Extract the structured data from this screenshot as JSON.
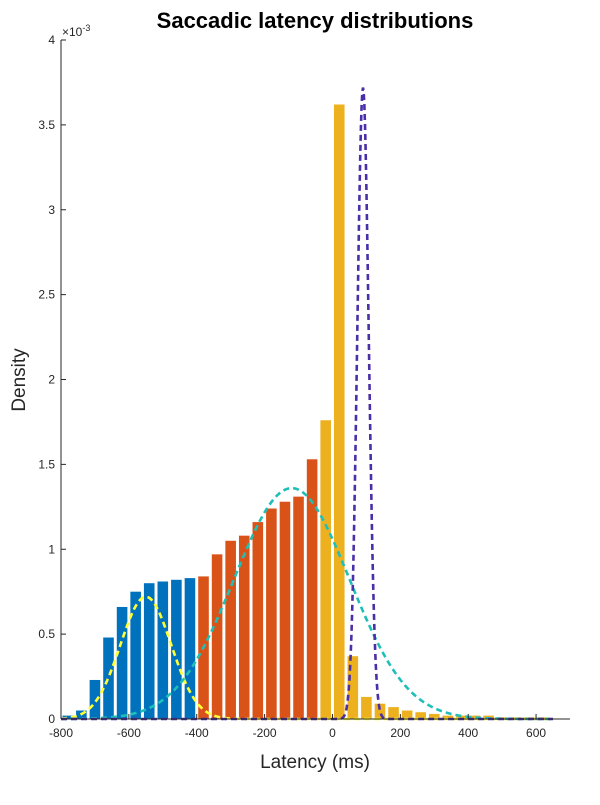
{
  "chart_data": {
    "type": "bar",
    "title": "Saccadic latency distributions",
    "xlabel": "Latency (ms)",
    "ylabel": "Density",
    "y_exponent_label": "×10^{-3}",
    "y_exponent_base": "×10",
    "y_exponent_power": "-3",
    "xlim": [
      -800,
      700
    ],
    "ylim": [
      0,
      4
    ],
    "x_ticks": [
      -800,
      -600,
      -400,
      -200,
      0,
      200,
      400,
      600
    ],
    "x_tick_labels": [
      "-800",
      "-600",
      "-400",
      "-200",
      "0",
      "200",
      "400",
      "600"
    ],
    "y_ticks": [
      0,
      0.5,
      1,
      1.5,
      2,
      2.5,
      3,
      3.5,
      4
    ],
    "y_tick_labels": [
      "0",
      "0.5",
      "1",
      "1.5",
      "2",
      "2.5",
      "3",
      "3.5",
      "4"
    ],
    "y_scale_note": "values are density × 10^-3",
    "bin_width": 40,
    "bar_series": [
      {
        "color": "#0072BD",
        "bins": [
          {
            "x": -780,
            "y": 0.02
          },
          {
            "x": -740,
            "y": 0.05
          },
          {
            "x": -700,
            "y": 0.23
          },
          {
            "x": -660,
            "y": 0.48
          },
          {
            "x": -620,
            "y": 0.66
          },
          {
            "x": -580,
            "y": 0.75
          },
          {
            "x": -540,
            "y": 0.8
          },
          {
            "x": -500,
            "y": 0.81
          },
          {
            "x": -460,
            "y": 0.82
          },
          {
            "x": -420,
            "y": 0.83
          }
        ]
      },
      {
        "color": "#D95319",
        "bins": [
          {
            "x": -380,
            "y": 0.84
          },
          {
            "x": -340,
            "y": 0.97
          },
          {
            "x": -300,
            "y": 1.05
          },
          {
            "x": -260,
            "y": 1.08
          },
          {
            "x": -220,
            "y": 1.16
          },
          {
            "x": -180,
            "y": 1.24
          },
          {
            "x": -140,
            "y": 1.28
          },
          {
            "x": -100,
            "y": 1.31
          },
          {
            "x": -60,
            "y": 1.53
          }
        ]
      },
      {
        "color": "#EDB120",
        "bins": [
          {
            "x": -20,
            "y": 1.76
          },
          {
            "x": 20,
            "y": 3.62
          },
          {
            "x": 60,
            "y": 0.37
          },
          {
            "x": 100,
            "y": 0.13
          },
          {
            "x": 140,
            "y": 0.09
          },
          {
            "x": 180,
            "y": 0.07
          },
          {
            "x": 220,
            "y": 0.05
          },
          {
            "x": 260,
            "y": 0.04
          },
          {
            "x": 300,
            "y": 0.03
          },
          {
            "x": 340,
            "y": 0.02
          },
          {
            "x": 380,
            "y": 0.02
          },
          {
            "x": 420,
            "y": 0.02
          },
          {
            "x": 460,
            "y": 0.02
          },
          {
            "x": 500,
            "y": 0.01
          },
          {
            "x": 540,
            "y": 0.01
          },
          {
            "x": 580,
            "y": 0.01
          },
          {
            "x": 620,
            "y": 0.01
          }
        ]
      }
    ],
    "fit_curves": [
      {
        "color": "#FFFF33",
        "style": "dashed",
        "shape": "gaussian",
        "mu": -550,
        "sigma": 75,
        "peak": 0.72,
        "x_range": [
          -800,
          650
        ]
      },
      {
        "color": "#1FBFB8",
        "style": "dashed",
        "shape": "gaussian",
        "mu": -120,
        "sigma": 170,
        "peak": 1.36,
        "x_range": [
          -800,
          650
        ]
      },
      {
        "color": "#4B2FA8",
        "style": "dashed",
        "shape": "gaussian",
        "mu": 90,
        "sigma": 17,
        "peak": 3.72,
        "x_range": [
          -800,
          650
        ]
      }
    ]
  }
}
